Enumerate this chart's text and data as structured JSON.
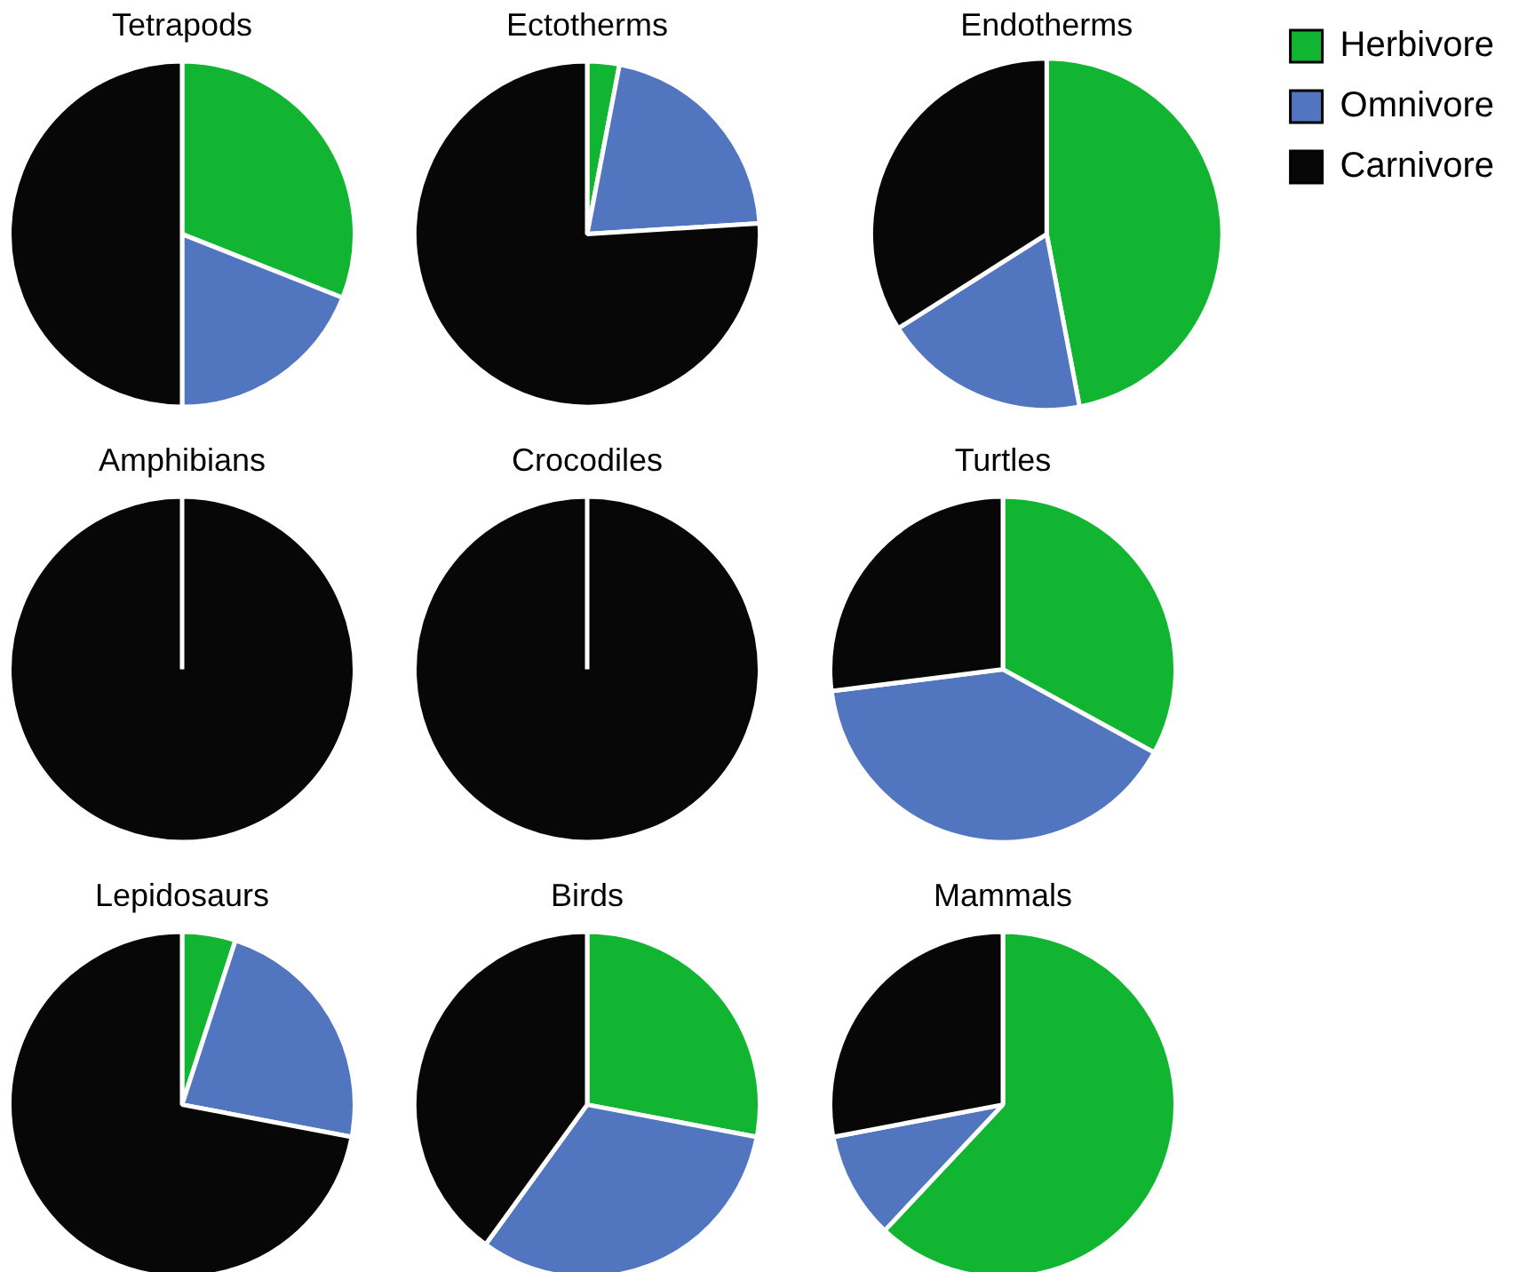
{
  "chart_data": [
    {
      "type": "pie",
      "title": "Tetrapods",
      "categories": [
        null,
        null,
        null
      ],
      "values": [
        31,
        19,
        50
      ],
      "colors": [
        "#12b531",
        "#5275bf",
        "#070707"
      ]
    },
    {
      "type": "pie",
      "title": "Ectotherms",
      "categories": [
        null,
        null,
        null
      ],
      "values": [
        3,
        21,
        76
      ],
      "colors": [
        "#12b531",
        "#5275bf",
        "#070707"
      ]
    },
    {
      "type": "pie",
      "title": "Endotherms",
      "categories": [
        "Herbivore",
        "Omnivore",
        "Carnivore"
      ],
      "values": [
        47,
        19,
        34
      ],
      "colors": [
        "#12b531",
        "#5275bf",
        "#070707"
      ],
      "legend": "top right"
    },
    {
      "type": "pie",
      "title": "Amphibians",
      "categories": [
        null,
        null,
        null
      ],
      "values": [
        0,
        0,
        100
      ],
      "colors": [
        "#12b531",
        "#5275bf",
        "#070707"
      ]
    },
    {
      "type": "pie",
      "title": "Crocodiles",
      "categories": [
        null,
        null,
        null
      ],
      "values": [
        0,
        0,
        100
      ],
      "colors": [
        "#12b531",
        "#5275bf",
        "#070707"
      ]
    },
    {
      "type": "pie",
      "title": "Turtles",
      "categories": [
        null,
        null,
        null
      ],
      "values": [
        33,
        40,
        27
      ],
      "colors": [
        "#12b531",
        "#5275bf",
        "#070707"
      ]
    },
    {
      "type": "pie",
      "title": "Lepidosaurs",
      "categories": [
        null,
        null,
        null
      ],
      "values": [
        5,
        23,
        72
      ],
      "colors": [
        "#12b531",
        "#5275bf",
        "#070707"
      ]
    },
    {
      "type": "pie",
      "title": "Birds",
      "categories": [
        null,
        null,
        null
      ],
      "values": [
        28,
        32,
        40
      ],
      "colors": [
        "#12b531",
        "#5275bf",
        "#070707"
      ]
    },
    {
      "type": "pie",
      "title": "Mammals",
      "categories": [
        null,
        null,
        null
      ],
      "values": [
        62,
        10,
        28
      ],
      "colors": [
        "#12b531",
        "#5275bf",
        "#070707"
      ]
    }
  ]
}
